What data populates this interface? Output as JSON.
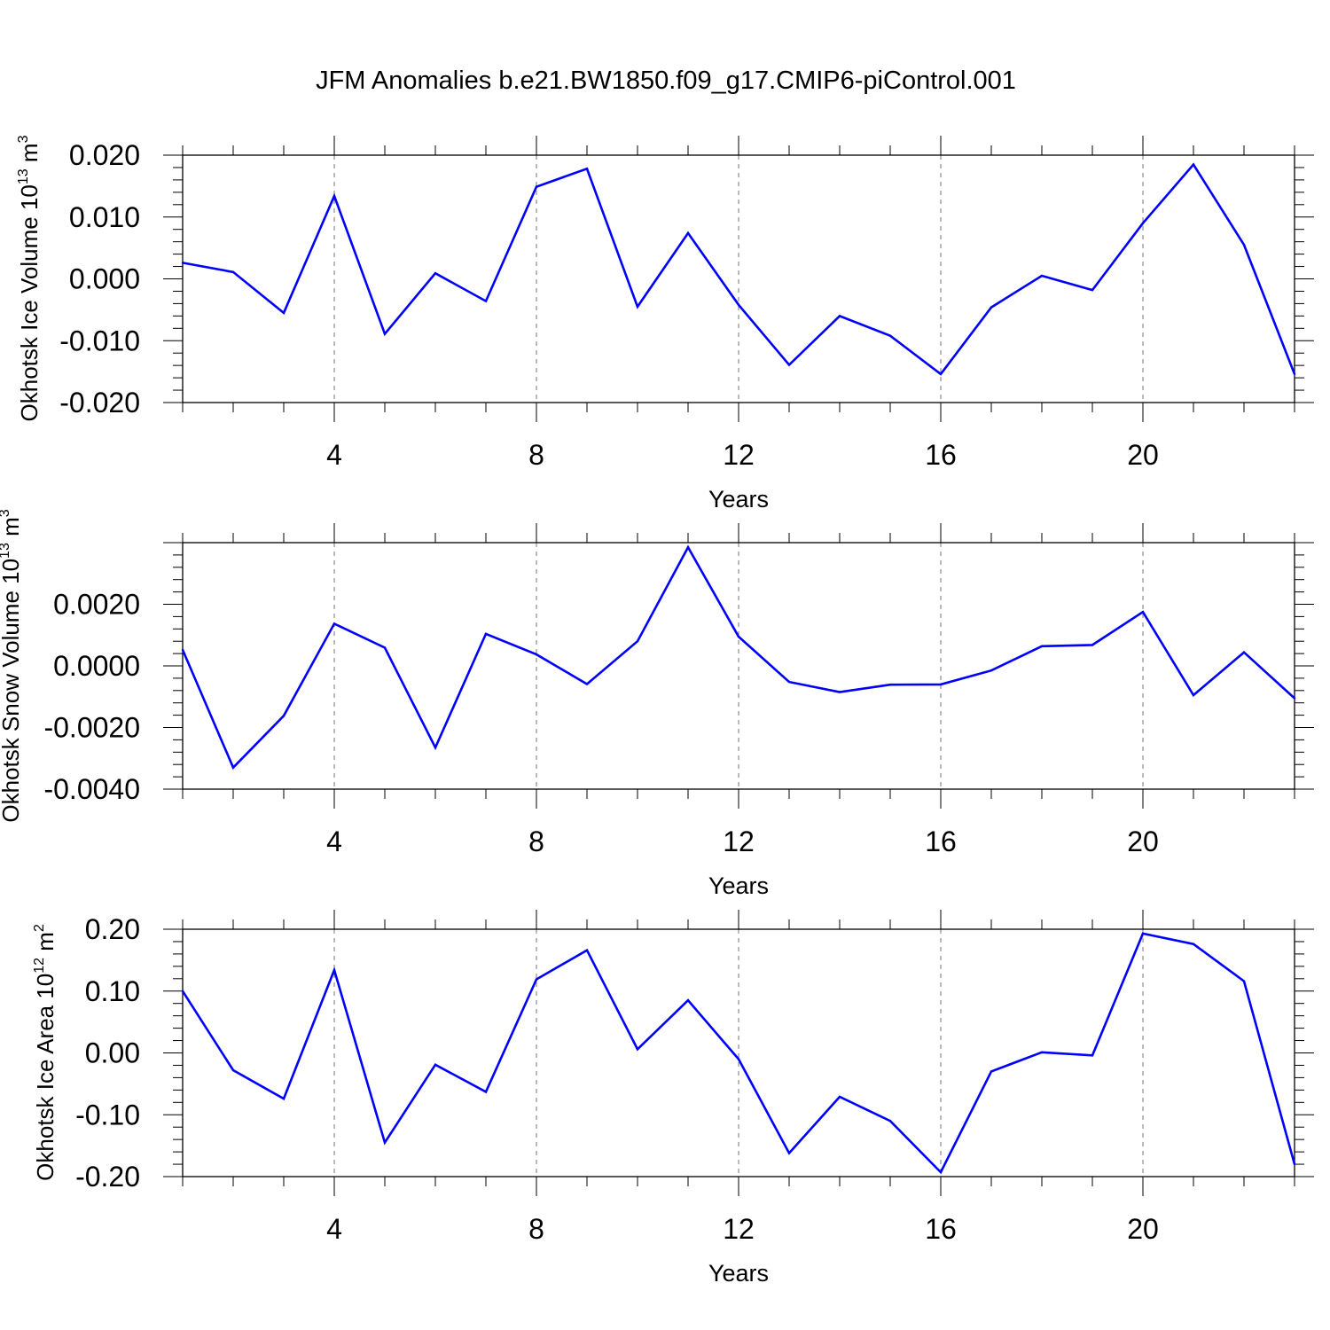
{
  "title": "JFM Anomalies b.e21.BW1850.f09_g17.CMIP6-piControl.001",
  "colors": {
    "line": "#0000ff",
    "axis": "#000000",
    "grid": "#777777"
  },
  "chart_data": [
    {
      "type": "line",
      "title": "",
      "xlabel": "Years",
      "ylabel": {
        "text": "Okhotsk Ice Volume 10",
        "exp": "13",
        "unit": " m",
        "unit_exp": "3"
      },
      "xlim": [
        1,
        23
      ],
      "ylim": [
        -0.02,
        0.02
      ],
      "xticks": [
        "4",
        "8",
        "12",
        "16",
        "20"
      ],
      "yticks": [
        "-0.020",
        "-0.010",
        "0.000",
        "0.010",
        "0.020"
      ],
      "grid": "vertical dashed at major x ticks",
      "series": [
        {
          "x": [
            1,
            2,
            3,
            4,
            5,
            6,
            7,
            8,
            9,
            10,
            11,
            12,
            13,
            14,
            15,
            16,
            17,
            18,
            19,
            20,
            21,
            22,
            23
          ],
          "values": [
            0.0026,
            0.0011,
            -0.0055,
            0.0134,
            -0.0089,
            0.0009,
            -0.0036,
            0.0149,
            0.0178,
            -0.0045,
            0.0074,
            -0.0042,
            -0.0139,
            -0.006,
            -0.0092,
            -0.0154,
            -0.0046,
            0.0005,
            -0.0018,
            0.009,
            0.0185,
            0.0055,
            -0.0154
          ]
        }
      ]
    },
    {
      "type": "line",
      "title": "",
      "xlabel": "Years",
      "ylabel": {
        "text": "Okhotsk Snow Volume 10",
        "exp": "13",
        "unit": " m",
        "unit_exp": "3"
      },
      "xlim": [
        1,
        23
      ],
      "ylim": [
        -0.004,
        0.004
      ],
      "xticks": [
        "4",
        "8",
        "12",
        "16",
        "20"
      ],
      "yticks": [
        "-0.0040",
        "-0.0020",
        "0.0000",
        "0.0020"
      ],
      "grid": "vertical dashed at major x ticks",
      "series": [
        {
          "x": [
            1,
            2,
            3,
            4,
            5,
            6,
            7,
            8,
            9,
            10,
            11,
            12,
            13,
            14,
            15,
            16,
            17,
            18,
            19,
            20,
            21,
            22,
            23
          ],
          "values": [
            0.00052,
            -0.0033,
            -0.00162,
            0.00137,
            0.00059,
            -0.00265,
            0.00104,
            0.00037,
            -0.00059,
            0.0008,
            0.00385,
            0.00095,
            -0.00052,
            -0.00085,
            -0.00061,
            -0.0006,
            -0.00015,
            0.00064,
            0.00068,
            0.00175,
            -0.00095,
            0.00044,
            -0.00105
          ]
        }
      ]
    },
    {
      "type": "line",
      "title": "",
      "xlabel": "Years",
      "ylabel": {
        "text": "Okhotsk Ice Area 10",
        "exp": "12",
        "unit": " m",
        "unit_exp": "2"
      },
      "xlim": [
        1,
        23
      ],
      "ylim": [
        -0.2,
        0.2
      ],
      "xticks": [
        "4",
        "8",
        "12",
        "16",
        "20"
      ],
      "yticks": [
        "-0.20",
        "-0.10",
        "0.00",
        "0.10",
        "0.20"
      ],
      "grid": "vertical dashed at major x ticks",
      "series": [
        {
          "x": [
            1,
            2,
            3,
            4,
            5,
            6,
            7,
            8,
            9,
            10,
            11,
            12,
            13,
            14,
            15,
            16,
            17,
            18,
            19,
            20,
            21,
            22,
            23
          ],
          "values": [
            0.1,
            -0.028,
            -0.074,
            0.134,
            -0.145,
            -0.019,
            -0.063,
            0.119,
            0.166,
            0.006,
            0.085,
            -0.01,
            -0.162,
            -0.071,
            -0.11,
            -0.193,
            -0.03,
            0.001,
            -0.004,
            0.193,
            0.176,
            0.116,
            -0.18
          ]
        }
      ]
    }
  ]
}
